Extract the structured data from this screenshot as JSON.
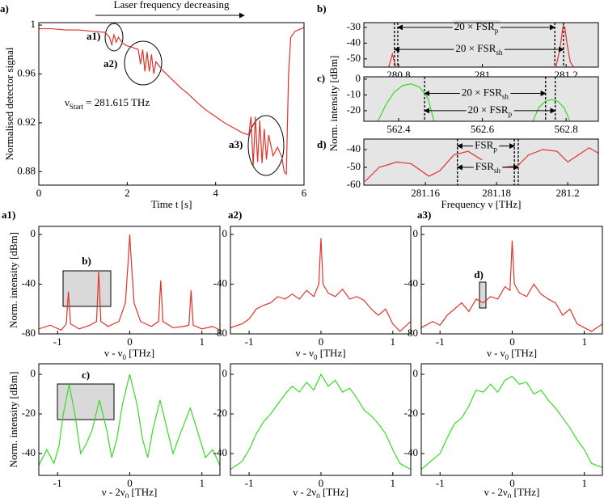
{
  "chart_data": [
    {
      "panel": "a)",
      "type": "line",
      "xlabel": "Time t [s]",
      "ylabel": "Normalised detector signal",
      "x": [
        0,
        0.3,
        0.6,
        0.9,
        1.2,
        1.5,
        1.6,
        1.65,
        1.7,
        1.75,
        1.8,
        1.9,
        2.0,
        2.1,
        2.25,
        2.3,
        2.35,
        2.4,
        2.45,
        2.5,
        2.55,
        2.6,
        2.65,
        2.8,
        3.0,
        3.2,
        3.4,
        3.6,
        3.8,
        4.0,
        4.2,
        4.4,
        4.6,
        4.75,
        4.8,
        4.85,
        4.9,
        4.95,
        5.0,
        5.05,
        5.1,
        5.15,
        5.2,
        5.3,
        5.4,
        5.5,
        5.55,
        5.6,
        5.65,
        5.7,
        5.8,
        6.0
      ],
      "series": [
        {
          "color": "#e0332b",
          "values": [
            0.997,
            0.997,
            0.996,
            0.996,
            0.995,
            0.994,
            0.99,
            0.984,
            0.992,
            0.986,
            0.99,
            0.985,
            0.983,
            0.982,
            0.98,
            0.968,
            0.98,
            0.962,
            0.978,
            0.962,
            0.976,
            0.96,
            0.97,
            0.963,
            0.956,
            0.949,
            0.943,
            0.936,
            0.93,
            0.925,
            0.92,
            0.916,
            0.912,
            0.91,
            0.925,
            0.885,
            0.925,
            0.888,
            0.922,
            0.887,
            0.915,
            0.89,
            0.91,
            0.893,
            0.9,
            0.892,
            0.88,
            0.878,
            0.96,
            0.99,
            0.995,
            0.998
          ]
        }
      ],
      "xlim": [
        0,
        6
      ],
      "ylim": [
        0.869,
        1.002
      ],
      "xticks": [
        0,
        2,
        4,
        6
      ],
      "yticks": [
        0.88,
        0.92,
        0.96,
        1
      ],
      "annotations": [
        {
          "text": "Laser frequency decreasing"
        },
        {
          "text": "a1)"
        },
        {
          "text": "a2)"
        },
        {
          "text": "a3)"
        },
        {
          "text": [
            "ν",
            "Start",
            " = 281.615 THz"
          ]
        }
      ]
    },
    {
      "panel": "b)",
      "type": "line",
      "plot_bg": "#e5e5e5",
      "x": [
        280.775,
        280.78,
        280.785,
        280.79,
        280.795,
        281.0,
        281.175,
        281.185,
        281.193,
        281.197,
        281.202,
        281.21,
        281.22
      ],
      "series": [
        {
          "color": "#e0332b",
          "values": [
            -56,
            -52,
            -47,
            -52,
            -56,
            null,
            -56,
            -44,
            -29,
            -30,
            -40,
            -52,
            -56
          ]
        }
      ],
      "xlim": [
        280.717,
        281.277
      ],
      "ylim": [
        -55.2,
        -27
      ],
      "xticks": [
        280.8,
        281,
        281.2
      ],
      "yticks": [
        -30,
        -40,
        -50
      ],
      "vlines": [
        280.79,
        280.798,
        281.173,
        281.194
      ],
      "arrows": [
        {
          "label": [
            "20 × FSR",
            "p"
          ],
          "x1": 280.798,
          "x2": 281.173,
          "y": -30
        },
        {
          "label": [
            "20 × FSR",
            "sh"
          ],
          "x1": 280.79,
          "x2": 281.194,
          "y": -44
        }
      ]
    },
    {
      "panel": "c)",
      "type": "line",
      "plot_bg": "#e5e5e5",
      "ylabel": "Norm. intensity [dBm]",
      "x": [
        562.35,
        562.37,
        562.39,
        562.41,
        562.43,
        562.45,
        562.47,
        562.485,
        562.6,
        562.72,
        562.735,
        562.75,
        562.765,
        562.78,
        562.795,
        562.81
      ],
      "series": [
        {
          "color": "#33dd22",
          "values": [
            -27,
            -16,
            -8,
            -4,
            -3,
            -5,
            -12,
            -27,
            null,
            -27,
            -18,
            -14,
            -13,
            -14,
            -18,
            -27
          ]
        }
      ],
      "xlim": [
        562.317,
        562.877
      ],
      "ylim": [
        -26.7,
        1.5
      ],
      "xticks": [
        562.4,
        562.6,
        562.8
      ],
      "yticks": [
        0,
        -10,
        -20
      ],
      "vlines": [
        562.462,
        562.751,
        562.774
      ],
      "arrows": [
        {
          "label": [
            "20 × FSR",
            "sh"
          ],
          "x1": 562.462,
          "x2": 562.751,
          "y": -9
        },
        {
          "label": [
            "20 × FSR",
            "p"
          ],
          "x1": 562.462,
          "x2": 562.774,
          "y": -20
        }
      ]
    },
    {
      "panel": "d)",
      "type": "line",
      "plot_bg": "#e5e5e5",
      "xlabel": "Frequency ν [THz]",
      "x": [
        281.143,
        281.147,
        281.152,
        281.156,
        281.161,
        281.164,
        281.168,
        281.172,
        281.176,
        281.179,
        281.182,
        281.186,
        281.189,
        281.193,
        281.197,
        281.2,
        281.203,
        281.206,
        281.2086
      ],
      "series": [
        {
          "color": "#e0332b",
          "values": [
            -58,
            -50,
            -47,
            -48,
            -55,
            -52,
            -43,
            -41,
            -46,
            -48,
            -50,
            -49,
            -43,
            -40,
            -41,
            -47,
            -43,
            -39,
            -42
          ]
        }
      ],
      "xlim": [
        281.1427,
        281.2086
      ],
      "ylim": [
        -60,
        -34.1
      ],
      "xticks": [
        281.16,
        281.18,
        281.2
      ],
      "yticks": [
        -40,
        -50,
        -60
      ],
      "vlines": [
        281.169,
        281.185,
        281.1861
      ],
      "arrows": [
        {
          "label": [
            "FSR",
            "p"
          ],
          "x1": 281.169,
          "x2": 281.185,
          "y": -38
        },
        {
          "label": [
            "FSR",
            "sh"
          ],
          "x1": 281.169,
          "x2": 281.1861,
          "y": -50
        }
      ]
    },
    {
      "panel": "a1)",
      "type": "line",
      "ylabel": "Norm. intensity [dBm]",
      "xlabel": [
        "ν - ν",
        "0",
        " [THz]"
      ],
      "x": [
        -1.26,
        -1.1,
        -0.95,
        -0.88,
        -0.85,
        -0.82,
        -0.7,
        -0.55,
        -0.46,
        -0.43,
        -0.4,
        -0.3,
        -0.15,
        -0.06,
        -0.02,
        0,
        0.02,
        0.06,
        0.15,
        0.3,
        0.4,
        0.43,
        0.46,
        0.6,
        0.75,
        0.82,
        0.85,
        0.88,
        1.0,
        1.15,
        1.25
      ],
      "series": [
        {
          "color": "#e0332b",
          "values": [
            -76,
            -73,
            -77,
            -72,
            -46,
            -72,
            -76,
            -73,
            -70,
            -30,
            -70,
            -74,
            -70,
            -55,
            -20,
            0,
            -20,
            -55,
            -70,
            -74,
            -70,
            -37,
            -70,
            -75,
            -74,
            -73,
            -45,
            -73,
            -76,
            -74,
            -77
          ]
        }
      ],
      "xlim": [
        -1.26,
        1.25
      ],
      "ylim": [
        -80,
        6.5
      ],
      "xticks": [
        -1,
        0,
        1
      ],
      "yticks": [
        0,
        -40,
        -80
      ],
      "annotations": [
        {
          "text": "b)"
        }
      ]
    },
    {
      "panel": "a2)",
      "type": "line",
      "xlabel": [
        "ν - ν",
        "0",
        " [THz]"
      ],
      "x": [
        -1.26,
        -1.1,
        -1.0,
        -0.9,
        -0.8,
        -0.7,
        -0.6,
        -0.5,
        -0.4,
        -0.3,
        -0.2,
        -0.1,
        -0.03,
        0,
        0.03,
        0.1,
        0.2,
        0.3,
        0.4,
        0.5,
        0.6,
        0.7,
        0.8,
        0.9,
        1.0,
        1.1,
        1.25
      ],
      "series": [
        {
          "color": "#e0332b",
          "values": [
            -75,
            -72,
            -68,
            -60,
            -57,
            -55,
            -50,
            -52,
            -48,
            -52,
            -45,
            -50,
            -40,
            -3,
            -40,
            -47,
            -50,
            -44,
            -52,
            -50,
            -53,
            -60,
            -65,
            -60,
            -72,
            -78,
            -70
          ]
        }
      ],
      "xlim": [
        -1.26,
        1.25
      ],
      "ylim": [
        -80,
        6.5
      ],
      "xticks": [
        -1,
        0,
        1
      ],
      "yticks": [
        0,
        -40,
        -80
      ]
    },
    {
      "panel": "a3)",
      "type": "line",
      "xlabel": [
        "ν - ν",
        "0",
        " [THz]"
      ],
      "x": [
        -1.26,
        -1.1,
        -1.0,
        -0.9,
        -0.8,
        -0.7,
        -0.6,
        -0.5,
        -0.4,
        -0.3,
        -0.2,
        -0.1,
        -0.03,
        0,
        0.03,
        0.1,
        0.2,
        0.3,
        0.4,
        0.5,
        0.6,
        0.7,
        0.8,
        0.9,
        1.0,
        1.1,
        1.25
      ],
      "series": [
        {
          "color": "#e0332b",
          "values": [
            -75,
            -70,
            -73,
            -65,
            -60,
            -55,
            -62,
            -52,
            -55,
            -50,
            -52,
            -42,
            -45,
            -5,
            -40,
            -47,
            -50,
            -40,
            -48,
            -52,
            -55,
            -65,
            -60,
            -72,
            -75,
            -78,
            -72
          ]
        }
      ],
      "xlim": [
        -1.26,
        1.25
      ],
      "ylim": [
        -80,
        6.5
      ],
      "xticks": [
        -1,
        0,
        1
      ],
      "yticks": [
        0,
        -40,
        -80
      ],
      "annotations": [
        {
          "text": "d)"
        }
      ]
    },
    {
      "type": "line",
      "ylabel": "Norm. intensity [dBm]",
      "xlabel": [
        "ν - 2ν",
        "0",
        " [THz]"
      ],
      "x": [
        -1.26,
        -1.15,
        -1.05,
        -0.98,
        -0.92,
        -0.84,
        -0.76,
        -0.68,
        -0.6,
        -0.52,
        -0.42,
        -0.32,
        -0.25,
        -0.18,
        -0.1,
        0,
        0.1,
        0.18,
        0.25,
        0.32,
        0.42,
        0.52,
        0.6,
        0.7,
        0.84,
        0.95,
        1.05,
        1.15,
        1.25
      ],
      "series": [
        {
          "color": "#33dd22",
          "values": [
            -46,
            -38,
            -45,
            -36,
            -20,
            -5,
            -20,
            -40,
            -35,
            -28,
            -13,
            -28,
            -42,
            -33,
            -15,
            0,
            -15,
            -33,
            -42,
            -28,
            -13,
            -28,
            -40,
            -30,
            -17,
            -30,
            -42,
            -38,
            -46
          ]
        }
      ],
      "xlim": [
        -1.26,
        1.25
      ],
      "ylim": [
        -51,
        5.3
      ],
      "xticks": [
        -1,
        0,
        1
      ],
      "yticks": [
        0,
        -20,
        -40
      ],
      "annotations": [
        {
          "text": "c)"
        }
      ]
    },
    {
      "type": "line",
      "xlabel": [
        "ν - 2ν",
        "0",
        " [THz]"
      ],
      "x": [
        -1.26,
        -1.1,
        -1.0,
        -0.9,
        -0.8,
        -0.7,
        -0.6,
        -0.5,
        -0.4,
        -0.3,
        -0.2,
        -0.1,
        0,
        0.1,
        0.2,
        0.3,
        0.4,
        0.5,
        0.6,
        0.7,
        0.8,
        0.9,
        1.0,
        1.1,
        1.25
      ],
      "series": [
        {
          "color": "#33dd22",
          "values": [
            -48,
            -44,
            -38,
            -30,
            -24,
            -20,
            -15,
            -10,
            -6,
            -9,
            -4,
            -8,
            0,
            -6,
            -3,
            -9,
            -7,
            -12,
            -18,
            -21,
            -25,
            -30,
            -38,
            -45,
            -48
          ]
        }
      ],
      "xlim": [
        -1.26,
        1.25
      ],
      "ylim": [
        -51,
        5.3
      ],
      "xticks": [
        -1,
        0,
        1
      ],
      "yticks": [
        0,
        -20,
        -40
      ]
    },
    {
      "type": "line",
      "xlabel": [
        "ν - 2ν",
        "0",
        " [THz]"
      ],
      "x": [
        -1.26,
        -1.1,
        -1.0,
        -0.9,
        -0.8,
        -0.7,
        -0.6,
        -0.5,
        -0.4,
        -0.3,
        -0.2,
        -0.1,
        0,
        0.1,
        0.2,
        0.3,
        0.4,
        0.5,
        0.6,
        0.7,
        0.8,
        0.9,
        1.0,
        1.1,
        1.25
      ],
      "series": [
        {
          "color": "#33dd22",
          "values": [
            -48,
            -43,
            -40,
            -32,
            -25,
            -22,
            -16,
            -8,
            -9,
            -5,
            -9,
            -3,
            -1,
            -5,
            -4,
            -10,
            -8,
            -13,
            -17,
            -22,
            -27,
            -33,
            -38,
            -45,
            -47
          ]
        }
      ],
      "xlim": [
        -1.26,
        1.25
      ],
      "ylim": [
        -51,
        5.3
      ],
      "xticks": [
        -1,
        0,
        1
      ],
      "yticks": [
        0,
        -20,
        -40
      ]
    }
  ]
}
